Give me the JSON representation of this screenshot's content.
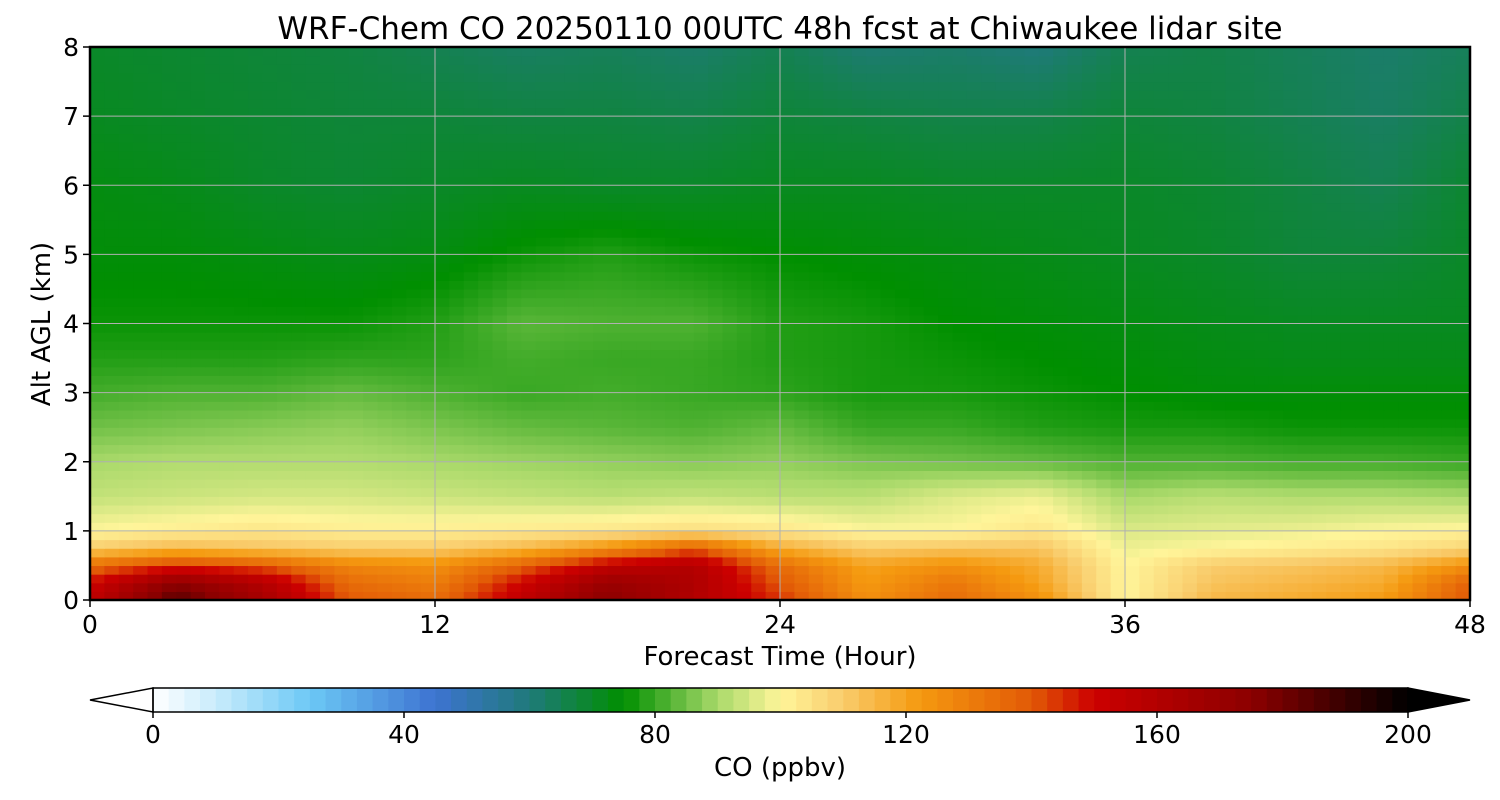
{
  "chart_data": {
    "type": "heatmap",
    "title": "WRF-Chem CO  20250110 00UTC 48h fcst at Chiwaukee lidar site",
    "xlabel": "Forecast Time (Hour)",
    "ylabel": "Alt AGL (km)",
    "xlim": [
      0,
      48
    ],
    "ylim": [
      0,
      8
    ],
    "x_ticks": [
      0,
      12,
      24,
      36,
      48
    ],
    "y_ticks": [
      0,
      1,
      2,
      3,
      4,
      5,
      6,
      7,
      8
    ],
    "grid": true,
    "x": [
      0,
      3,
      6,
      9,
      12,
      15,
      18,
      21,
      24,
      27,
      30,
      33,
      36,
      39,
      42,
      45,
      48
    ],
    "y": [
      0,
      0.25,
      0.5,
      0.75,
      1.0,
      1.5,
      2.0,
      2.5,
      3.0,
      3.5,
      4.0,
      5.0,
      6.0,
      7.0,
      8.0
    ],
    "z": [
      [
        155,
        185,
        165,
        140,
        135,
        155,
        175,
        160,
        145,
        125,
        135,
        125,
        100,
        115,
        118,
        122,
        140
      ],
      [
        150,
        175,
        160,
        135,
        130,
        150,
        170,
        162,
        140,
        122,
        132,
        120,
        100,
        112,
        115,
        118,
        138
      ],
      [
        135,
        145,
        140,
        128,
        125,
        138,
        155,
        160,
        135,
        120,
        125,
        118,
        100,
        110,
        112,
        115,
        125
      ],
      [
        110,
        115,
        112,
        110,
        110,
        115,
        125,
        140,
        118,
        110,
        112,
        112,
        98,
        100,
        102,
        104,
        108
      ],
      [
        100,
        102,
        104,
        102,
        102,
        103,
        104,
        106,
        104,
        100,
        100,
        104,
        96,
        97,
        98,
        100,
        101
      ],
      [
        93,
        94,
        95,
        95,
        94,
        93,
        92,
        93,
        92,
        92,
        96,
        98,
        90,
        92,
        91,
        91,
        90
      ],
      [
        90,
        91,
        91,
        91,
        90,
        89,
        88,
        87,
        88,
        86,
        85,
        84,
        82,
        82,
        81,
        81,
        80
      ],
      [
        85,
        86,
        87,
        88,
        86,
        84,
        83,
        82,
        84,
        80,
        80,
        78,
        77,
        77,
        76,
        76,
        76
      ],
      [
        81,
        82,
        82,
        84,
        82,
        80,
        81,
        80,
        79,
        77,
        77,
        76,
        75,
        74,
        74,
        74,
        74
      ],
      [
        78,
        78,
        78,
        79,
        79,
        81,
        80,
        80,
        78,
        77,
        76,
        75,
        74,
        73,
        72,
        72,
        72
      ],
      [
        76,
        76,
        76,
        76,
        78,
        83,
        82,
        82,
        78,
        77,
        75,
        74,
        73,
        72,
        71,
        71,
        71
      ],
      [
        74,
        74,
        73,
        72,
        73,
        76,
        78,
        76,
        75,
        74,
        73,
        72,
        71,
        70,
        68,
        68,
        70
      ],
      [
        73,
        72,
        70,
        69,
        70,
        71,
        70,
        70,
        71,
        71,
        70,
        70,
        70,
        69,
        67,
        65,
        69
      ],
      [
        71,
        70,
        69,
        68,
        68,
        67,
        67,
        66,
        68,
        67,
        66,
        66,
        68,
        67,
        65,
        63,
        66
      ],
      [
        70,
        69,
        68,
        67,
        65,
        63,
        64,
        62,
        65,
        61,
        62,
        60,
        65,
        66,
        64,
        62,
        64
      ]
    ],
    "colorbar": {
      "label": "CO  (ppbv)",
      "min": 0,
      "max": 200,
      "ticks": [
        0,
        40,
        80,
        120,
        160,
        200
      ],
      "extend": "both",
      "orientation": "horizontal",
      "stops": [
        {
          "v": 0,
          "c": "#ffffff"
        },
        {
          "v": 10,
          "c": "#c9ecfb"
        },
        {
          "v": 25,
          "c": "#6cc8f5"
        },
        {
          "v": 45,
          "c": "#3d73d1"
        },
        {
          "v": 60,
          "c": "#1f7a7a"
        },
        {
          "v": 75,
          "c": "#008f00"
        },
        {
          "v": 90,
          "c": "#a9d96a"
        },
        {
          "v": 100,
          "c": "#fff59a"
        },
        {
          "v": 110,
          "c": "#f9cc6c"
        },
        {
          "v": 122,
          "c": "#f59a10"
        },
        {
          "v": 140,
          "c": "#e25a06"
        },
        {
          "v": 150,
          "c": "#cc0000"
        },
        {
          "v": 175,
          "c": "#8c0000"
        },
        {
          "v": 200,
          "c": "#000000"
        }
      ]
    }
  }
}
